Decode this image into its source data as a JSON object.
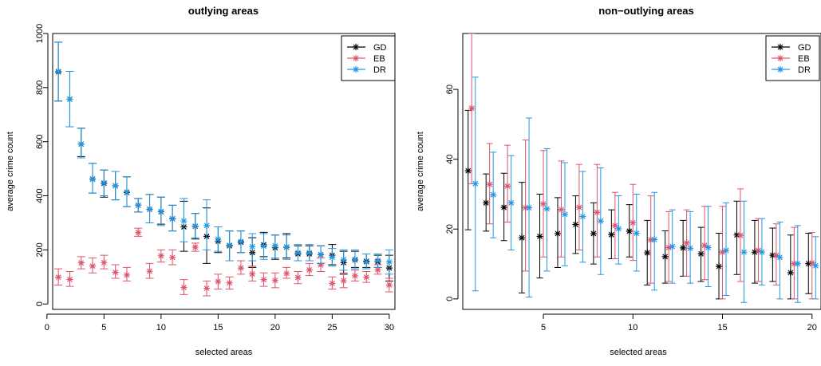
{
  "colors": {
    "GD": "#000000",
    "EB": "#df536b",
    "DR": "#2297e6"
  },
  "chart_data": [
    {
      "type": "scatter",
      "title": "outlying areas",
      "xlabel": "selected areas",
      "ylabel": "average crime count",
      "xlim": [
        0.5,
        30.5
      ],
      "ylim": [
        -20,
        1000
      ],
      "x_ticks": [
        0,
        5,
        10,
        15,
        20,
        25,
        30
      ],
      "y_ticks": [
        0,
        200,
        400,
        600,
        800,
        1000
      ],
      "legend": {
        "position": "top-right",
        "entries": [
          "GD",
          "EB",
          "DR"
        ]
      },
      "series": [
        {
          "name": "GD",
          "x": [
            1,
            2,
            3,
            4,
            5,
            6,
            7,
            8,
            9,
            10,
            11,
            12,
            13,
            14,
            15,
            16,
            17,
            18,
            19,
            20,
            21,
            22,
            23,
            24,
            25,
            26,
            27,
            28,
            29,
            30
          ],
          "y": [
            858,
            757,
            591,
            462,
            446,
            437,
            412,
            365,
            350,
            341,
            315,
            285,
            287,
            250,
            232,
            215,
            228,
            190,
            219,
            208,
            210,
            185,
            185,
            182,
            180,
            153,
            163,
            158,
            156,
            133
          ],
          "lo": [
            750,
            655,
            545,
            410,
            395,
            385,
            360,
            340,
            300,
            295,
            270,
            195,
            240,
            150,
            190,
            160,
            190,
            135,
            175,
            165,
            170,
            160,
            160,
            150,
            145,
            110,
            135,
            135,
            135,
            85
          ],
          "hi": [
            968,
            860,
            650,
            520,
            495,
            490,
            470,
            390,
            405,
            395,
            365,
            380,
            335,
            355,
            285,
            270,
            270,
            245,
            265,
            255,
            260,
            215,
            215,
            215,
            220,
            195,
            195,
            185,
            180,
            180
          ]
        },
        {
          "name": "EB",
          "x": [
            1,
            2,
            3,
            4,
            5,
            6,
            7,
            8,
            9,
            10,
            11,
            12,
            13,
            14,
            15,
            16,
            17,
            18,
            19,
            20,
            21,
            22,
            23,
            24,
            25,
            26,
            27,
            28,
            29,
            30
          ],
          "y": [
            99,
            91,
            152,
            140,
            153,
            117,
            107,
            264,
            121,
            178,
            172,
            61,
            210,
            58,
            83,
            78,
            133,
            111,
            90,
            87,
            113,
            98,
            126,
            144,
            76,
            86,
            104,
            99,
            126,
            70
          ],
          "lo": [
            70,
            65,
            130,
            115,
            130,
            95,
            85,
            250,
            95,
            155,
            145,
            35,
            195,
            30,
            55,
            55,
            110,
            85,
            65,
            60,
            95,
            75,
            105,
            120,
            55,
            60,
            85,
            80,
            110,
            45
          ],
          "hi": [
            130,
            120,
            175,
            170,
            180,
            145,
            135,
            280,
            150,
            200,
            200,
            90,
            225,
            85,
            110,
            100,
            160,
            140,
            115,
            115,
            135,
            120,
            150,
            170,
            100,
            115,
            125,
            120,
            145,
            95
          ]
        },
        {
          "name": "DR",
          "x": [
            1,
            2,
            3,
            4,
            5,
            6,
            7,
            8,
            9,
            10,
            11,
            12,
            13,
            14,
            15,
            16,
            17,
            18,
            19,
            20,
            21,
            22,
            23,
            24,
            25,
            26,
            27,
            28,
            29,
            30
          ],
          "y": [
            860,
            757,
            591,
            461,
            448,
            437,
            414,
            365,
            351,
            342,
            316,
            307,
            288,
            290,
            240,
            217,
            231,
            212,
            214,
            215,
            211,
            190,
            190,
            183,
            173,
            164,
            165,
            155,
            161,
            155
          ],
          "lo": [
            750,
            655,
            540,
            410,
            400,
            385,
            360,
            340,
            300,
            290,
            270,
            230,
            245,
            200,
            195,
            160,
            190,
            160,
            165,
            170,
            165,
            160,
            160,
            150,
            140,
            125,
            130,
            130,
            135,
            110
          ],
          "hi": [
            968,
            860,
            650,
            520,
            495,
            490,
            470,
            390,
            405,
            395,
            365,
            390,
            335,
            385,
            285,
            270,
            270,
            260,
            260,
            255,
            255,
            220,
            220,
            215,
            205,
            200,
            200,
            185,
            185,
            200
          ]
        }
      ]
    },
    {
      "type": "scatter",
      "title": "non−outlying areas",
      "xlabel": "selected areas",
      "ylabel": "average crime count",
      "xlim": [
        0.5,
        20.5
      ],
      "ylim": [
        -3,
        76
      ],
      "x_ticks": [
        5,
        10,
        15,
        20
      ],
      "y_ticks": [
        0,
        20,
        40,
        60
      ],
      "legend": {
        "position": "top-right",
        "entries": [
          "GD",
          "EB",
          "DR"
        ]
      },
      "series": [
        {
          "name": "GD",
          "x": [
            1,
            2,
            3,
            4,
            5,
            6,
            7,
            8,
            9,
            10,
            11,
            12,
            13,
            14,
            15,
            16,
            17,
            18,
            19,
            20
          ],
          "y": [
            36.7,
            27.5,
            26.2,
            17.5,
            17.9,
            18.7,
            21.3,
            18.7,
            18.4,
            19.4,
            13.2,
            12.1,
            14.6,
            12.9,
            9.3,
            18.3,
            13.4,
            12.5,
            7.5,
            10.1
          ],
          "lo": [
            19.8,
            19.4,
            16.7,
            1.7,
            6.0,
            9.0,
            13.0,
            10.0,
            11.5,
            12.0,
            4.0,
            4.5,
            6.5,
            5.0,
            0,
            7.0,
            4.5,
            5.0,
            0,
            1.5
          ],
          "hi": [
            54.0,
            35.8,
            36.0,
            33.4,
            30.0,
            29.0,
            29.5,
            27.5,
            25.5,
            27.0,
            22.5,
            19.5,
            22.5,
            20.5,
            18.8,
            28.0,
            22.5,
            20.3,
            18.3,
            18.8
          ]
        },
        {
          "name": "EB",
          "x": [
            1,
            2,
            3,
            4,
            5,
            6,
            7,
            8,
            9,
            10,
            11,
            12,
            13,
            14,
            15,
            16,
            17,
            18,
            19,
            20
          ],
          "y": [
            54.6,
            32.8,
            32.3,
            26.1,
            27.2,
            25.6,
            26.2,
            24.8,
            21.0,
            21.8,
            16.9,
            14.7,
            16.0,
            15.3,
            13.4,
            18.2,
            13.9,
            12.5,
            10.1,
            10.3
          ],
          "lo": [
            33.0,
            21.5,
            22.0,
            8.0,
            12.0,
            12.0,
            14.0,
            12.0,
            11.5,
            11.0,
            4.5,
            5.0,
            6.5,
            5.5,
            0,
            5.0,
            5.0,
            4.0,
            0,
            0
          ],
          "hi": [
            76.0,
            44.5,
            44.0,
            45.5,
            42.5,
            39.5,
            38.5,
            38.5,
            30.5,
            32.8,
            29.5,
            25.0,
            25.5,
            26.5,
            26.5,
            31.5,
            23.0,
            21.5,
            20.5,
            19.0
          ]
        },
        {
          "name": "DR",
          "x": [
            1,
            2,
            3,
            4,
            5,
            6,
            7,
            8,
            9,
            10,
            11,
            12,
            13,
            14,
            15,
            16,
            17,
            18,
            19,
            20
          ],
          "y": [
            33.0,
            29.8,
            27.5,
            26.1,
            25.8,
            24.2,
            23.6,
            22.3,
            20.1,
            18.8,
            17.0,
            15.0,
            14.5,
            14.7,
            13.9,
            13.4,
            13.4,
            11.9,
            10.1,
            9.5
          ],
          "lo": [
            2.3,
            17.5,
            14.0,
            0.5,
            8.0,
            9.5,
            10.5,
            7.0,
            10.0,
            8.0,
            2.5,
            4.5,
            4.5,
            3.5,
            1.0,
            -1.0,
            4.0,
            0,
            -1.0,
            0
          ],
          "hi": [
            63.5,
            42.0,
            41.0,
            51.8,
            43.0,
            39.0,
            36.5,
            37.5,
            29.5,
            30.0,
            30.5,
            25.5,
            25.0,
            26.5,
            27.5,
            28.0,
            23.0,
            22.0,
            21.0,
            17.8
          ]
        }
      ]
    }
  ]
}
